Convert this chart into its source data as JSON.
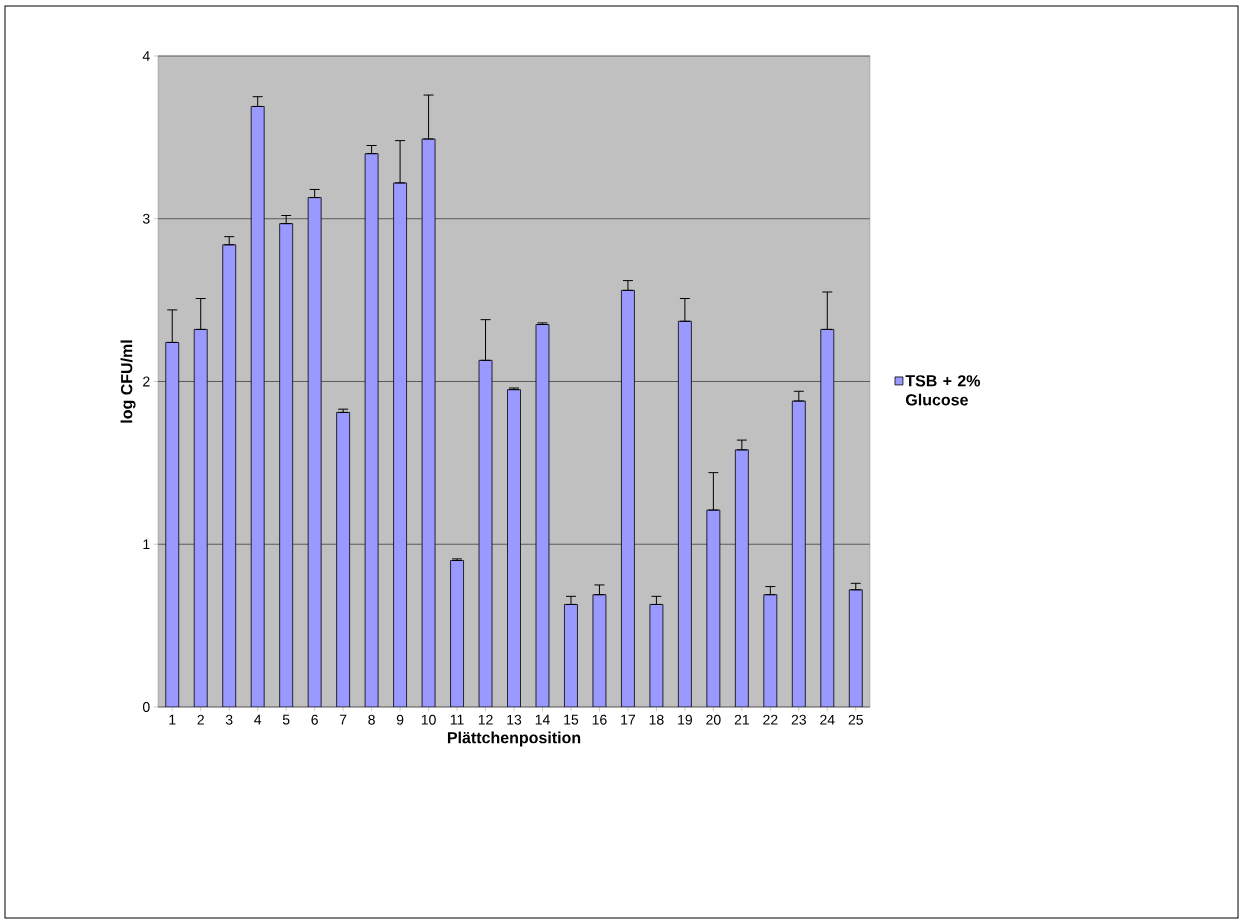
{
  "chart_data": {
    "type": "bar",
    "xlabel": "Plättchenposition",
    "ylabel": "log CFU/ml",
    "categories": [
      "1",
      "2",
      "3",
      "4",
      "5",
      "6",
      "7",
      "8",
      "9",
      "10",
      "11",
      "12",
      "13",
      "14",
      "15",
      "16",
      "17",
      "18",
      "19",
      "20",
      "21",
      "22",
      "23",
      "24",
      "25"
    ],
    "series": [
      {
        "name": "TSB + 2% Glucose",
        "color": "#9999ff",
        "values": [
          2.24,
          2.32,
          2.84,
          3.69,
          2.97,
          3.13,
          1.81,
          3.4,
          3.22,
          3.49,
          0.9,
          2.13,
          1.95,
          2.35,
          0.63,
          0.69,
          2.56,
          0.63,
          2.37,
          1.21,
          1.58,
          0.69,
          1.88,
          2.32,
          0.72
        ],
        "errors": [
          [
            2.24,
            2.44
          ],
          [
            2.32,
            2.51
          ],
          [
            2.84,
            2.89
          ],
          [
            3.69,
            3.75
          ],
          [
            2.97,
            3.02
          ],
          [
            3.13,
            3.18
          ],
          [
            1.81,
            1.83
          ],
          [
            3.4,
            3.45
          ],
          [
            3.22,
            3.48
          ],
          [
            3.49,
            3.76
          ],
          [
            0.9,
            0.91
          ],
          [
            2.13,
            2.38
          ],
          [
            1.95,
            1.96
          ],
          [
            2.35,
            2.36
          ],
          [
            0.63,
            0.68
          ],
          [
            0.69,
            0.75
          ],
          [
            2.56,
            2.62
          ],
          [
            0.63,
            0.68
          ],
          [
            2.37,
            2.51
          ],
          [
            1.21,
            1.44
          ],
          [
            1.58,
            1.64
          ],
          [
            0.69,
            0.74
          ],
          [
            1.88,
            1.94
          ],
          [
            2.32,
            2.55
          ],
          [
            0.72,
            0.76
          ]
        ]
      }
    ],
    "ylim": [
      0,
      4
    ],
    "yticks": [
      0,
      1,
      2,
      3,
      4
    ],
    "grid": "y",
    "legend": "right"
  }
}
